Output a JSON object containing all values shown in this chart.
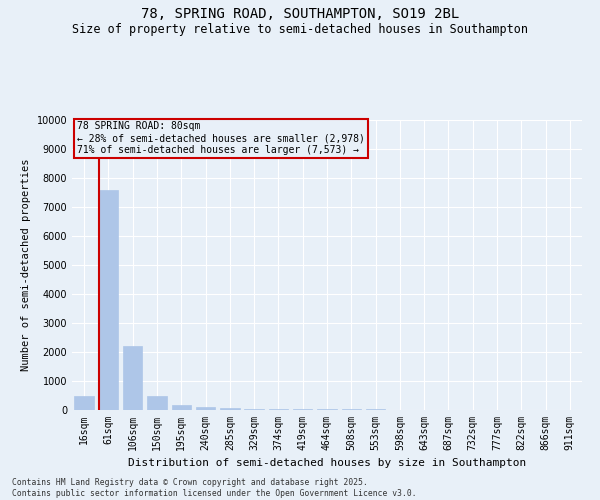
{
  "title": "78, SPRING ROAD, SOUTHAMPTON, SO19 2BL",
  "subtitle": "Size of property relative to semi-detached houses in Southampton",
  "xlabel": "Distribution of semi-detached houses by size in Southampton",
  "ylabel": "Number of semi-detached properties",
  "categories": [
    "16sqm",
    "61sqm",
    "106sqm",
    "150sqm",
    "195sqm",
    "240sqm",
    "285sqm",
    "329sqm",
    "374sqm",
    "419sqm",
    "464sqm",
    "508sqm",
    "553sqm",
    "598sqm",
    "643sqm",
    "687sqm",
    "732sqm",
    "777sqm",
    "822sqm",
    "866sqm",
    "911sqm"
  ],
  "values": [
    500,
    7600,
    2200,
    480,
    180,
    90,
    65,
    50,
    40,
    32,
    28,
    24,
    20,
    17,
    15,
    13,
    11,
    9,
    7,
    5,
    4
  ],
  "bar_color": "#aec6e8",
  "property_line_color": "#cc0000",
  "property_bin_index": 1,
  "annotation_title": "78 SPRING ROAD: 80sqm",
  "annotation_line1": "← 28% of semi-detached houses are smaller (2,978)",
  "annotation_line2": "71% of semi-detached houses are larger (7,573) →",
  "annotation_box_color": "#cc0000",
  "ylim": [
    0,
    10000
  ],
  "yticks": [
    0,
    1000,
    2000,
    3000,
    4000,
    5000,
    6000,
    7000,
    8000,
    9000,
    10000
  ],
  "footer_line1": "Contains HM Land Registry data © Crown copyright and database right 2025.",
  "footer_line2": "Contains public sector information licensed under the Open Government Licence v3.0.",
  "background_color": "#e8f0f8",
  "bar_edge_color": "#aec6e8",
  "title_fontsize": 10,
  "subtitle_fontsize": 8.5,
  "tick_fontsize": 7,
  "ylabel_fontsize": 7.5,
  "xlabel_fontsize": 8
}
